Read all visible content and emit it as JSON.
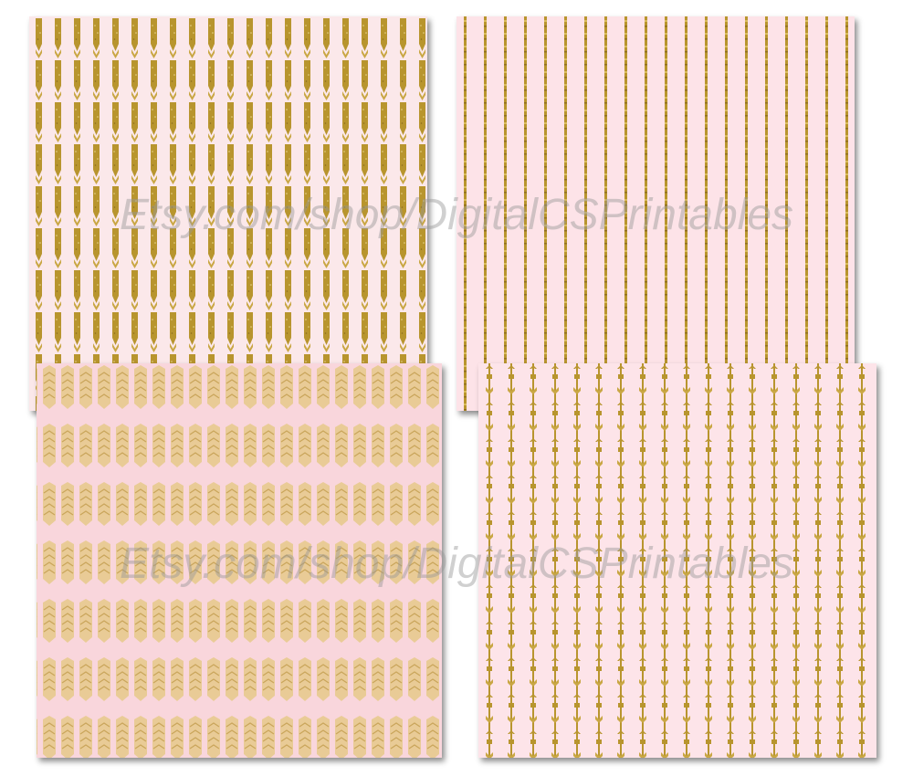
{
  "watermark": {
    "top": "Etsy.com/shop/DigitalCSPrintables",
    "bottom": "Etsy.com/shop/DigitalCSPrintables"
  },
  "sheets": [
    {
      "pattern": "gold-glitter-arrow-stripes",
      "background": "#fbe8ea",
      "ink": "#b8952e"
    },
    {
      "pattern": "gold-glitter-stripes",
      "background": "#fde3e8",
      "ink": "#b8952e"
    },
    {
      "pattern": "gold-glitter-chevron-arrows",
      "background": "#f9d6dc",
      "ink": "#d6b26a"
    },
    {
      "pattern": "gold-glitter-small-arrows",
      "background": "#fde4e9",
      "ink": "#b8952e"
    }
  ]
}
